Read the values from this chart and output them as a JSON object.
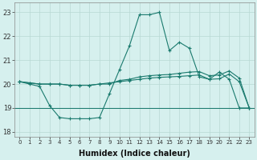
{
  "xlabel": "Humidex (Indice chaleur)",
  "x": [
    0,
    1,
    2,
    3,
    4,
    5,
    6,
    7,
    8,
    9,
    10,
    11,
    12,
    13,
    14,
    15,
    16,
    17,
    18,
    19,
    20,
    21,
    22,
    23
  ],
  "line_main": [
    20.1,
    20.0,
    19.9,
    19.1,
    18.6,
    18.55,
    18.55,
    18.55,
    18.6,
    19.6,
    20.6,
    21.6,
    22.9,
    22.9,
    23.0,
    21.4,
    21.75,
    21.5,
    20.3,
    20.2,
    20.5,
    20.2,
    19.0,
    19.0
  ],
  "line_avg": [
    20.1,
    20.05,
    20.0,
    20.0,
    20.0,
    19.95,
    19.95,
    19.95,
    20.0,
    20.0,
    20.15,
    20.2,
    20.3,
    20.35,
    20.38,
    20.4,
    20.45,
    20.5,
    20.52,
    20.35,
    20.38,
    20.55,
    20.25,
    19.0
  ],
  "line_trend": [
    20.1,
    20.05,
    20.0,
    20.0,
    20.0,
    19.95,
    19.95,
    19.95,
    20.0,
    20.05,
    20.1,
    20.15,
    20.2,
    20.25,
    20.28,
    20.3,
    20.32,
    20.35,
    20.38,
    20.2,
    20.22,
    20.42,
    20.1,
    19.0
  ],
  "hline_y": 19,
  "line_color": "#1a7a6e",
  "bg_color": "#d6f0ee",
  "grid_color": "#b8d8d4",
  "ylim": [
    17.8,
    23.4
  ],
  "yticks": [
    18,
    19,
    20,
    21,
    22,
    23
  ],
  "xticks": [
    0,
    1,
    2,
    3,
    4,
    5,
    6,
    7,
    8,
    9,
    10,
    11,
    12,
    13,
    14,
    15,
    16,
    17,
    18,
    19,
    20,
    21,
    22,
    23
  ],
  "marker": "+",
  "markersize": 3.5,
  "linewidth": 0.8
}
